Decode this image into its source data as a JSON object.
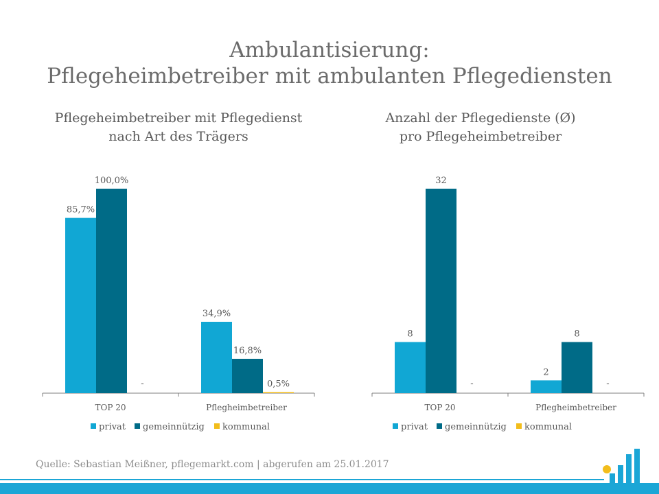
{
  "header": {
    "title_line1": "Ambulantisierung:",
    "title_line2": "Pflegeheimbetreiber mit ambulanten Pflegediensten"
  },
  "colors": {
    "privat": "#11a7d4",
    "gemeinnuetzig": "#006b87",
    "kommunal": "#f2bd1b",
    "axis": "#7f7f7f",
    "label": "#595959"
  },
  "chart_data": [
    {
      "type": "bar",
      "title_line1": "Pflegeheimbetreiber  mit Pflegedienst",
      "title_line2": "nach Art des Trägers",
      "categories": [
        "TOP 20",
        "Pflegheimbetreiber"
      ],
      "series": [
        {
          "name": "privat",
          "values": [
            85.7,
            34.9
          ],
          "labels": [
            "85,7%",
            "34,9%"
          ]
        },
        {
          "name": "gemeinnützig",
          "values": [
            100.0,
            16.8
          ],
          "labels": [
            "100,0%",
            "16,8%"
          ]
        },
        {
          "name": "kommunal",
          "values": [
            0,
            0.5
          ],
          "labels": [
            "-",
            "0,5%"
          ]
        }
      ],
      "ylim": [
        0,
        100
      ],
      "grid": false,
      "legend": "bottom"
    },
    {
      "type": "bar",
      "title_line1": "Anzahl der Pflegedienste (Ø)",
      "title_line2": "pro Pflegeheimbetreiber",
      "categories": [
        "TOP 20",
        "Pflegheimbetreiber"
      ],
      "series": [
        {
          "name": "privat",
          "values": [
            8,
            2
          ],
          "labels": [
            "8",
            "2"
          ]
        },
        {
          "name": "gemeinnützig",
          "values": [
            32,
            8
          ],
          "labels": [
            "32",
            "8"
          ]
        },
        {
          "name": "kommunal",
          "values": [
            0,
            0
          ],
          "labels": [
            "-",
            "-"
          ]
        }
      ],
      "ylim": [
        0,
        32
      ],
      "grid": false,
      "legend": "bottom"
    }
  ],
  "footer": {
    "source": "Quelle: Sebastian Meißner, pflegemarkt.com | abgerufen am 25.01.2017"
  }
}
